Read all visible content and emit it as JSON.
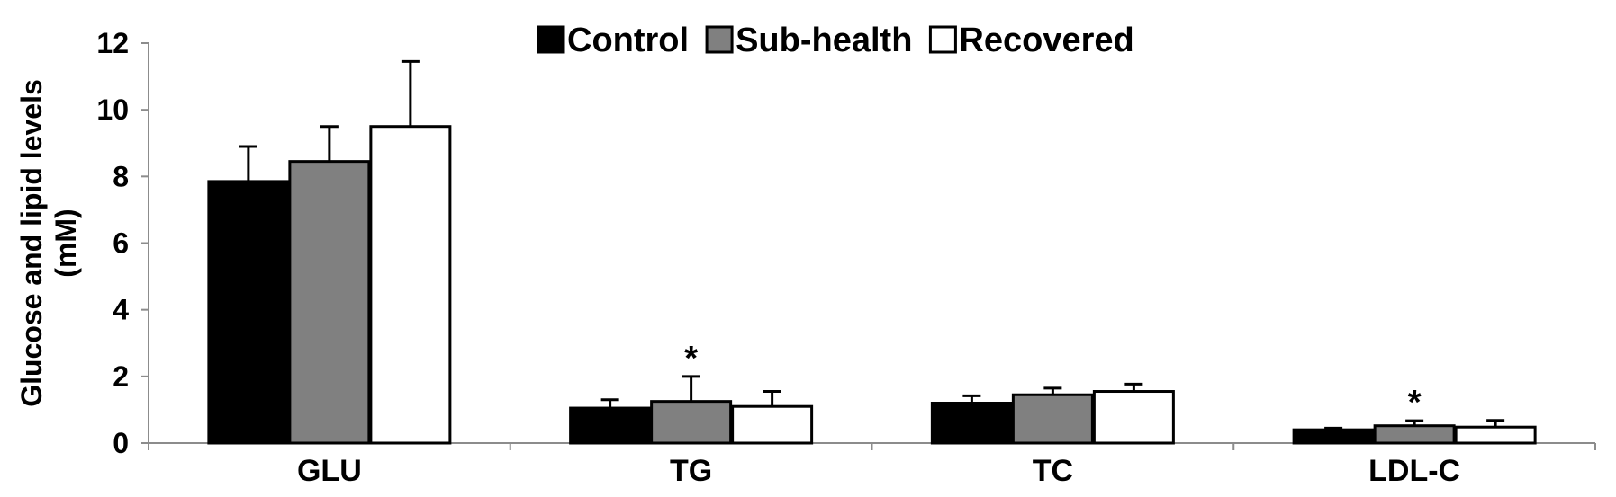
{
  "chart_data": {
    "type": "bar",
    "title": "",
    "xlabel": "",
    "ylabel": [
      "Glucose and lipid levels",
      "(mM)"
    ],
    "ylim": [
      0,
      12
    ],
    "yticks": [
      0,
      2,
      4,
      6,
      8,
      10,
      12
    ],
    "ytick_labels": [
      "0",
      "2",
      "4",
      "6",
      "8",
      "10",
      "12"
    ],
    "categories": [
      "GLU",
      "TG",
      "TC",
      "LDL-C"
    ],
    "legend_position": "top-center",
    "grid": false,
    "series": [
      {
        "name": "Control",
        "color": "#000000",
        "values": [
          7.85,
          1.05,
          1.2,
          0.4
        ],
        "errors": [
          1.05,
          0.25,
          0.22,
          0.05
        ]
      },
      {
        "name": "Sub-health",
        "color": "#808080",
        "values": [
          8.45,
          1.25,
          1.45,
          0.52
        ],
        "errors": [
          1.05,
          0.75,
          0.2,
          0.15
        ]
      },
      {
        "name": "Recovered",
        "color": "#ffffff",
        "values": [
          9.5,
          1.1,
          1.55,
          0.48
        ],
        "errors": [
          1.95,
          0.45,
          0.22,
          0.2
        ]
      }
    ],
    "annotations": [
      {
        "text": "*",
        "category": "TG",
        "series": "Sub-health"
      },
      {
        "text": "*",
        "category": "LDL-C",
        "series": "Sub-health"
      }
    ]
  }
}
